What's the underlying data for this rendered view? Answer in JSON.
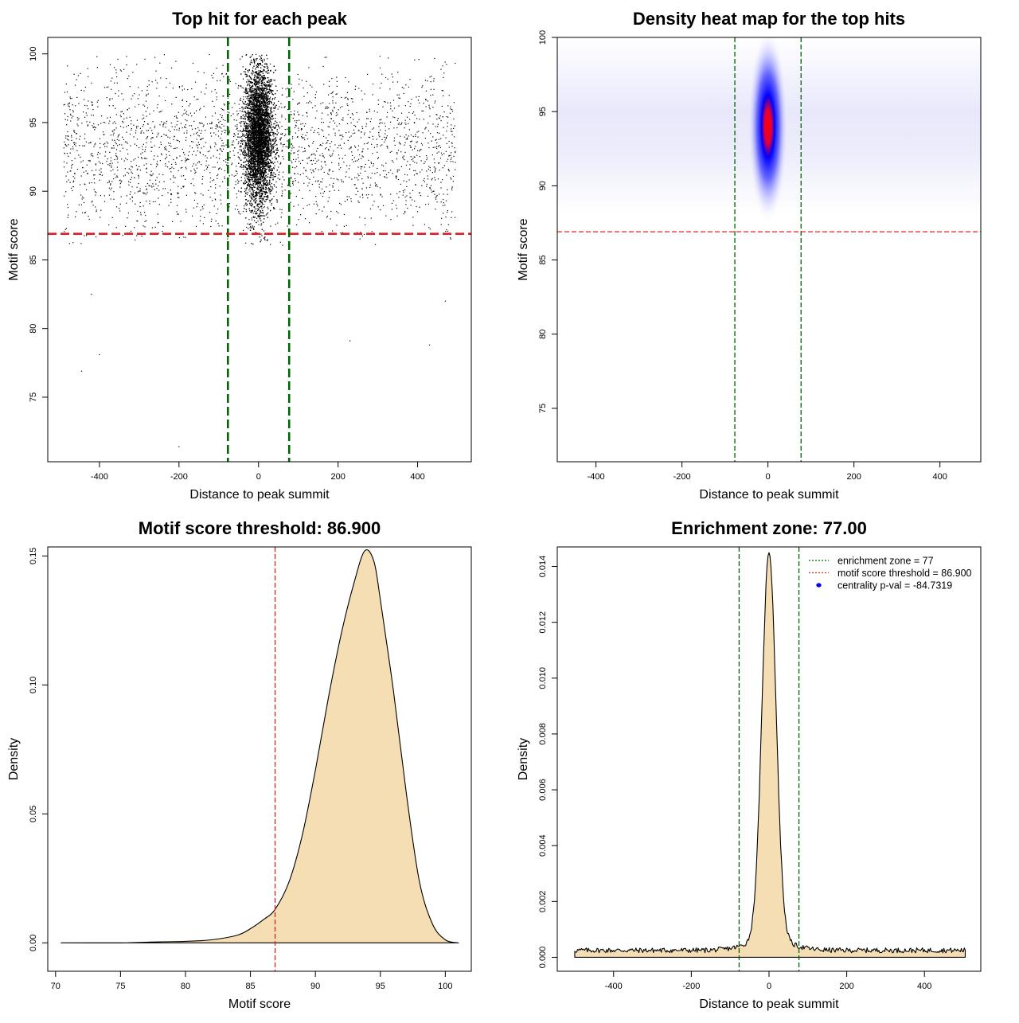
{
  "colors": {
    "threshold_line": "#e0201e",
    "zone_line": "#006400",
    "density_fill": "#f5deb3",
    "points": "#000000",
    "heat_low": "#ffffff",
    "heat_mid": "#0000ff",
    "heat_high": "#ff0000",
    "legend_point": "#0000ff"
  },
  "chart_data": [
    {
      "type": "scatter",
      "title": "Top hit for each peak",
      "xlabel": "Distance to peak summit",
      "ylabel": "Motif score",
      "xlim": [
        -530,
        535
      ],
      "ylim": [
        70.3,
        101.2
      ],
      "xticks": [
        -400,
        -200,
        0,
        200,
        400
      ],
      "yticks": [
        75,
        80,
        85,
        90,
        95,
        100
      ],
      "grid": false,
      "legend": "none",
      "point_summary": {
        "central_cluster": {
          "x_center": 0,
          "x_sd": 18,
          "y_center": 94,
          "y_sd": 2.5,
          "y_range": [
            86,
            100
          ],
          "approx_count": 9000
        },
        "background": {
          "x_range": [
            -490,
            495
          ],
          "y_center": 93,
          "y_sd": 3,
          "y_range": [
            86,
            100
          ],
          "approx_count": 2600
        },
        "outliers": [
          [
            -445,
            76.9
          ],
          [
            -400,
            78.1
          ],
          [
            -200,
            71.4
          ],
          [
            430,
            78.8
          ],
          [
            230,
            79.1
          ],
          [
            -420,
            82.5
          ],
          [
            470,
            82
          ]
        ]
      },
      "hlines": [
        {
          "y": 86.9,
          "role": "motif score threshold"
        }
      ],
      "vlines": [
        {
          "x": -77,
          "role": "enrichment zone"
        },
        {
          "x": 77,
          "role": "enrichment zone"
        }
      ]
    },
    {
      "type": "heatmap",
      "title": "Density heat map for the top hits",
      "xlabel": "Distance to peak summit",
      "ylabel": "Motif score",
      "xlim": [
        -490,
        495
      ],
      "ylim": [
        71.4,
        100
      ],
      "xticks": [
        -400,
        -200,
        0,
        200,
        400
      ],
      "yticks": [
        75,
        80,
        85,
        90,
        95,
        100
      ],
      "grid": false,
      "legend": "none",
      "hotspot": {
        "x_center": 0,
        "x_sd": 18,
        "y_center": 94,
        "y_sd": 2.5,
        "peak_color": "red"
      },
      "hlines": [
        {
          "y": 86.9,
          "role": "motif score threshold"
        }
      ],
      "vlines": [
        {
          "x": -77,
          "role": "enrichment zone"
        },
        {
          "x": 77,
          "role": "enrichment zone"
        }
      ]
    },
    {
      "type": "area",
      "title": "Motif score threshold: 86.900",
      "xlabel": "Motif score",
      "ylabel": "Density",
      "xlim": [
        69.4,
        102
      ],
      "ylim": [
        -0.011,
        0.1535
      ],
      "xticks": [
        70,
        75,
        80,
        85,
        90,
        95,
        100
      ],
      "yticks": [
        0,
        0.05,
        0.1,
        0.15
      ],
      "ytick_labels": [
        "0.00",
        "0.05",
        "0.10",
        "0.15"
      ],
      "grid": false,
      "legend": "none",
      "x": [
        70.4,
        75,
        78,
        80,
        82,
        84,
        85,
        86,
        86.9,
        88,
        89,
        90,
        91,
        92,
        93,
        93.8,
        94.5,
        95,
        96,
        97,
        98,
        99,
        100,
        101
      ],
      "y": [
        0,
        0,
        0.0004,
        0.0006,
        0.0012,
        0.003,
        0.0055,
        0.009,
        0.013,
        0.024,
        0.042,
        0.067,
        0.095,
        0.12,
        0.14,
        0.152,
        0.148,
        0.133,
        0.098,
        0.058,
        0.024,
        0.0075,
        0.0012,
        0
      ],
      "vlines": [
        {
          "x": 86.9,
          "role": "motif score threshold"
        }
      ]
    },
    {
      "type": "area",
      "title": "Enrichment zone: 77.00",
      "xlabel": "Distance to peak summit",
      "ylabel": "Density",
      "xlim": [
        -545,
        545
      ],
      "ylim": [
        -0.0005,
        0.0147
      ],
      "xticks": [
        -400,
        -200,
        0,
        200,
        400
      ],
      "yticks": [
        0,
        0.002,
        0.004,
        0.006,
        0.008,
        0.01,
        0.012,
        0.014
      ],
      "ytick_labels": [
        "0.000",
        "0.002",
        "0.004",
        "0.006",
        "0.008",
        "0.010",
        "0.012",
        "0.014"
      ],
      "grid": false,
      "legend": "top-right",
      "peak": {
        "x_center": 0,
        "x_sd": 18,
        "max": 0.0142
      },
      "baseline": {
        "x_range": [
          -500,
          505
        ],
        "level": 0.00025
      },
      "vlines": [
        {
          "x": -77,
          "role": "enrichment zone"
        },
        {
          "x": 77,
          "role": "enrichment zone"
        }
      ],
      "legend_entries": [
        {
          "label": "enrichment zone = 77",
          "symbol": "line",
          "color": "#006400"
        },
        {
          "label": "motif score threshold = 86.900",
          "symbol": "line",
          "color": "#e0201e"
        },
        {
          "label": "centrality p-val = -84.7319",
          "symbol": "point",
          "color": "#0000ff"
        }
      ]
    }
  ]
}
